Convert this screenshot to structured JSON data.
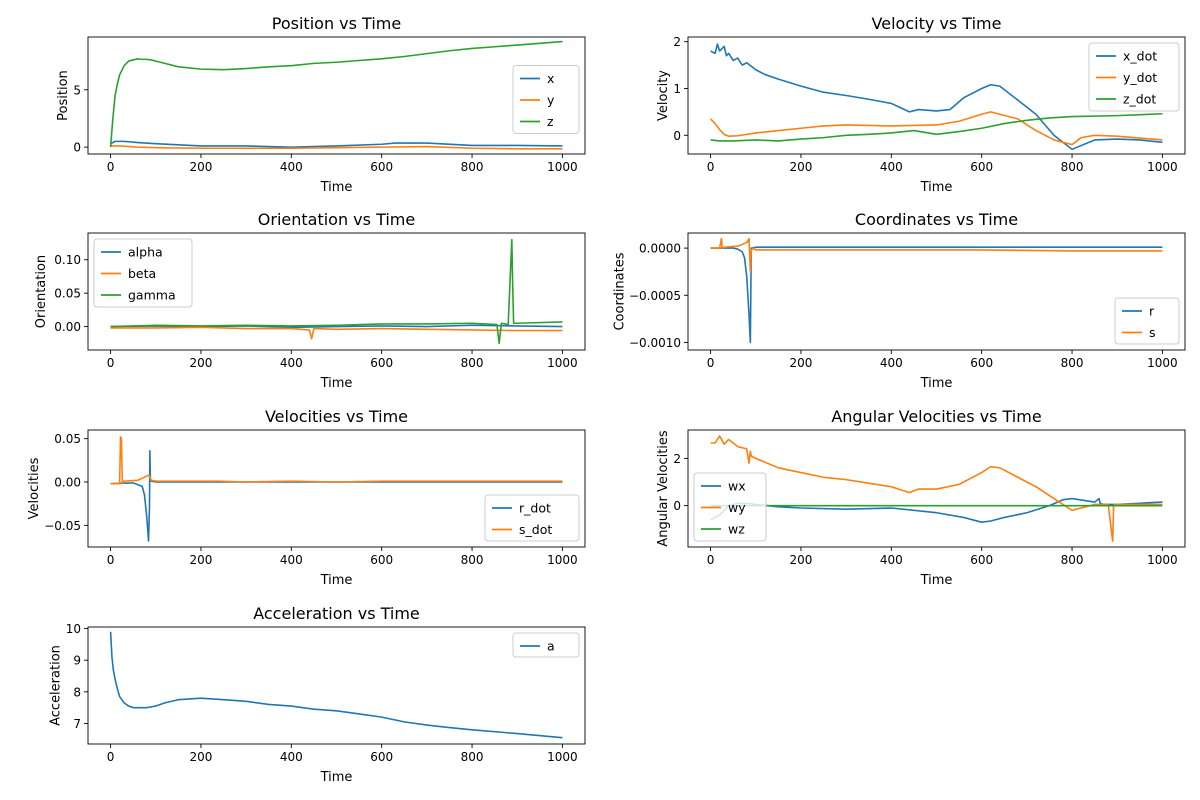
{
  "colors": {
    "c0": "#1f77b4",
    "c1": "#ff7f0e",
    "c2": "#2ca02c"
  },
  "chart_data": [
    {
      "type": "line",
      "title": "Position vs Time",
      "xlabel": "Time",
      "ylabel": "Position",
      "xlim": [
        -50,
        1050
      ],
      "ylim": [
        -0.6,
        9.6
      ],
      "xticks": [
        0,
        200,
        400,
        600,
        800,
        1000
      ],
      "yticks": [
        0,
        5
      ],
      "legend": "center-right",
      "series": [
        {
          "name": "x",
          "color": "c0",
          "x": [
            0,
            10,
            30,
            60,
            100,
            200,
            300,
            400,
            500,
            600,
            630,
            700,
            800,
            900,
            1000
          ],
          "y": [
            0.3,
            0.5,
            0.5,
            0.4,
            0.3,
            0.1,
            0.1,
            0.0,
            0.1,
            0.25,
            0.35,
            0.35,
            0.15,
            0.15,
            0.1
          ]
        },
        {
          "name": "y",
          "color": "c1",
          "x": [
            0,
            20,
            60,
            100,
            200,
            300,
            400,
            500,
            600,
            700,
            800,
            900,
            1000
          ],
          "y": [
            0.1,
            0.1,
            0.0,
            -0.05,
            -0.1,
            -0.1,
            -0.1,
            -0.05,
            0.0,
            0.05,
            -0.1,
            -0.15,
            -0.15
          ]
        },
        {
          "name": "z",
          "color": "c2",
          "x": [
            0,
            5,
            10,
            15,
            20,
            30,
            40,
            50,
            60,
            70,
            80,
            90,
            100,
            120,
            150,
            200,
            250,
            300,
            350,
            400,
            450,
            500,
            550,
            600,
            650,
            700,
            750,
            800,
            850,
            900,
            950,
            1000
          ],
          "y": [
            0,
            2.5,
            4.5,
            5.5,
            6.3,
            7.1,
            7.5,
            7.6,
            7.7,
            7.65,
            7.65,
            7.6,
            7.5,
            7.3,
            7.0,
            6.8,
            6.75,
            6.85,
            7.0,
            7.1,
            7.3,
            7.4,
            7.55,
            7.7,
            7.9,
            8.15,
            8.4,
            8.6,
            8.75,
            8.9,
            9.05,
            9.2
          ]
        }
      ]
    },
    {
      "type": "line",
      "title": "Velocity vs Time",
      "xlabel": "Time",
      "ylabel": "Velocity",
      "xlim": [
        -50,
        1050
      ],
      "ylim": [
        -0.4,
        2.1
      ],
      "xticks": [
        0,
        200,
        400,
        600,
        800,
        1000
      ],
      "yticks": [
        0,
        1,
        2
      ],
      "legend": "upper-right",
      "series": [
        {
          "name": "x_dot",
          "color": "c0",
          "x": [
            0,
            10,
            15,
            20,
            30,
            35,
            40,
            50,
            60,
            70,
            80,
            100,
            120,
            150,
            200,
            250,
            300,
            350,
            400,
            440,
            460,
            500,
            530,
            560,
            600,
            620,
            640,
            680,
            720,
            760,
            800,
            850,
            900,
            950,
            1000
          ],
          "y": [
            1.8,
            1.75,
            1.95,
            1.8,
            1.9,
            1.7,
            1.75,
            1.6,
            1.65,
            1.5,
            1.55,
            1.4,
            1.3,
            1.2,
            1.05,
            0.92,
            0.85,
            0.77,
            0.68,
            0.5,
            0.55,
            0.52,
            0.55,
            0.8,
            1.0,
            1.08,
            1.05,
            0.75,
            0.45,
            0.0,
            -0.3,
            -0.1,
            -0.08,
            -0.1,
            -0.15
          ]
        },
        {
          "name": "y_dot",
          "color": "c1",
          "x": [
            0,
            10,
            20,
            30,
            40,
            60,
            100,
            150,
            200,
            250,
            300,
            400,
            500,
            550,
            600,
            620,
            640,
            680,
            720,
            760,
            800,
            820,
            850,
            900,
            1000
          ],
          "y": [
            0.35,
            0.25,
            0.12,
            0.02,
            -0.02,
            -0.01,
            0.05,
            0.1,
            0.15,
            0.2,
            0.22,
            0.2,
            0.22,
            0.3,
            0.45,
            0.5,
            0.45,
            0.35,
            0.1,
            -0.1,
            -0.2,
            -0.05,
            0.0,
            -0.02,
            -0.1
          ]
        },
        {
          "name": "z_dot",
          "color": "c2",
          "x": [
            0,
            20,
            50,
            100,
            150,
            200,
            250,
            300,
            350,
            400,
            450,
            500,
            550,
            600,
            650,
            700,
            750,
            800,
            900,
            1000
          ],
          "y": [
            -0.1,
            -0.12,
            -0.12,
            -0.1,
            -0.12,
            -0.08,
            -0.05,
            0.0,
            0.02,
            0.05,
            0.1,
            0.02,
            0.08,
            0.15,
            0.25,
            0.32,
            0.37,
            0.4,
            0.42,
            0.46
          ]
        }
      ]
    },
    {
      "type": "line",
      "title": "Orientation vs Time",
      "xlabel": "Time",
      "ylabel": "Orientation",
      "xlim": [
        -50,
        1050
      ],
      "ylim": [
        -0.035,
        0.14
      ],
      "xticks": [
        0,
        200,
        400,
        600,
        800,
        1000
      ],
      "yticks": [
        0.0,
        0.05,
        0.1
      ],
      "legend": "upper-left",
      "series": [
        {
          "name": "alpha",
          "color": "c0",
          "x": [
            0,
            100,
            200,
            300,
            400,
            500,
            600,
            700,
            800,
            900,
            1000
          ],
          "y": [
            0.0,
            0.001,
            0.0,
            0.001,
            -0.001,
            0.0,
            0.001,
            0.0,
            0.002,
            0.001,
            0.0
          ]
        },
        {
          "name": "beta",
          "color": "c1",
          "x": [
            0,
            100,
            200,
            300,
            400,
            440,
            445,
            450,
            500,
            600,
            700,
            800,
            900,
            1000
          ],
          "y": [
            -0.002,
            -0.002,
            -0.001,
            -0.003,
            -0.003,
            -0.005,
            -0.018,
            -0.003,
            -0.004,
            -0.003,
            -0.004,
            -0.005,
            -0.006,
            -0.006
          ]
        },
        {
          "name": "gamma",
          "color": "c2",
          "x": [
            0,
            100,
            200,
            300,
            400,
            500,
            600,
            700,
            800,
            855,
            860,
            865,
            880,
            888,
            890,
            892,
            900,
            1000
          ],
          "y": [
            0.0,
            0.002,
            0.001,
            0.002,
            0.001,
            0.002,
            0.004,
            0.004,
            0.005,
            0.003,
            -0.025,
            0.005,
            0.003,
            0.13,
            0.06,
            0.005,
            0.005,
            0.007
          ]
        }
      ]
    },
    {
      "type": "line",
      "title": "Coordinates vs Time",
      "xlabel": "Time",
      "ylabel": "Coordinates",
      "xlim": [
        -50,
        1050
      ],
      "ylim": [
        -0.00108,
        0.00016
      ],
      "xticks": [
        0,
        200,
        400,
        600,
        800,
        1000
      ],
      "yticks": [
        0.0,
        -0.0005,
        -0.001
      ],
      "legend": "lower-right",
      "series": [
        {
          "name": "r",
          "color": "c0",
          "x": [
            0,
            50,
            60,
            70,
            75,
            80,
            85,
            88,
            90,
            100,
            200,
            400,
            600,
            800,
            1000
          ],
          "y": [
            0.0,
            0.0,
            -1e-05,
            -4e-05,
            -0.0001,
            -0.0003,
            -0.0007,
            -0.001,
            0.0,
            1e-05,
            1e-05,
            1e-05,
            1e-05,
            1e-05,
            1e-05
          ]
        },
        {
          "name": "s",
          "color": "c1",
          "x": [
            0,
            20,
            24,
            26,
            30,
            60,
            80,
            85,
            88,
            90,
            95,
            100,
            200,
            400,
            600,
            800,
            1000
          ],
          "y": [
            0.0,
            0.0,
            0.0001,
            0.0,
            1e-05,
            2e-05,
            6e-05,
            0.0001,
            -0.00025,
            -2e-05,
            0.0,
            -2e-05,
            -2e-05,
            -2e-05,
            -2e-05,
            -3e-05,
            -3e-05
          ]
        }
      ]
    },
    {
      "type": "line",
      "title": "Velocities vs Time",
      "xlabel": "Time",
      "ylabel": "Velocities",
      "xlim": [
        -50,
        1050
      ],
      "ylim": [
        -0.075,
        0.06
      ],
      "xticks": [
        0,
        200,
        400,
        600,
        800,
        1000
      ],
      "yticks": [
        0.05,
        0.0,
        -0.05
      ],
      "legend": "lower-right",
      "series": [
        {
          "name": "r_dot",
          "color": "c0",
          "x": [
            0,
            50,
            70,
            75,
            80,
            84,
            86,
            87,
            88,
            90,
            100,
            300,
            500,
            800,
            1000
          ],
          "y": [
            -0.002,
            -0.001,
            -0.005,
            -0.015,
            -0.04,
            -0.068,
            -0.03,
            0.036,
            0.002,
            0.001,
            0.0,
            0.0,
            0.0,
            0.0,
            0.0
          ]
        },
        {
          "name": "s_dot",
          "color": "c1",
          "x": [
            0,
            20,
            22,
            24,
            26,
            30,
            60,
            85,
            90,
            100,
            240,
            300,
            400,
            500,
            600,
            700,
            800,
            900,
            1000
          ],
          "y": [
            -0.002,
            -0.002,
            0.052,
            0.05,
            -0.002,
            0.001,
            0.002,
            0.008,
            0.002,
            0.001,
            0.001,
            0.0,
            0.001,
            0.0,
            0.001,
            0.001,
            0.001,
            0.001,
            0.001
          ]
        }
      ]
    },
    {
      "type": "line",
      "title": "Angular Velocities vs Time",
      "xlabel": "Time",
      "ylabel": "Angular Velocities",
      "xlim": [
        -50,
        1050
      ],
      "ylim": [
        -1.75,
        3.2
      ],
      "xticks": [
        0,
        200,
        400,
        600,
        800,
        1000
      ],
      "yticks": [
        0,
        2
      ],
      "legend": "lower-left",
      "series": [
        {
          "name": "wx",
          "color": "c0",
          "x": [
            0,
            10,
            20,
            30,
            40,
            60,
            80,
            100,
            150,
            200,
            300,
            400,
            500,
            560,
            600,
            620,
            650,
            700,
            750,
            780,
            800,
            850,
            860,
            862,
            870,
            900,
            1000
          ],
          "y": [
            -0.6,
            -0.5,
            -0.4,
            -0.2,
            0.0,
            0.1,
            0.1,
            0.05,
            -0.05,
            -0.1,
            -0.15,
            -0.1,
            -0.3,
            -0.5,
            -0.7,
            -0.65,
            -0.5,
            -0.3,
            0.0,
            0.25,
            0.3,
            0.15,
            0.3,
            0.1,
            0.05,
            0.05,
            0.15
          ]
        },
        {
          "name": "wy",
          "color": "c1",
          "x": [
            0,
            10,
            20,
            30,
            40,
            60,
            80,
            85,
            88,
            90,
            100,
            150,
            200,
            250,
            300,
            350,
            400,
            440,
            460,
            500,
            550,
            600,
            620,
            640,
            680,
            720,
            760,
            800,
            850,
            880,
            890,
            892,
            895,
            900,
            1000
          ],
          "y": [
            2.65,
            2.65,
            2.95,
            2.6,
            2.8,
            2.5,
            2.4,
            1.8,
            2.3,
            2.1,
            2.0,
            1.6,
            1.4,
            1.2,
            1.1,
            0.95,
            0.8,
            0.55,
            0.7,
            0.7,
            0.9,
            1.4,
            1.65,
            1.6,
            1.2,
            0.8,
            0.3,
            -0.2,
            0.05,
            0.05,
            -1.5,
            0.0,
            0.05,
            0.05,
            0.05
          ]
        },
        {
          "name": "wz",
          "color": "c2",
          "x": [
            0,
            100,
            200,
            400,
            600,
            800,
            1000
          ],
          "y": [
            0.0,
            0.0,
            0.0,
            0.0,
            0.0,
            0.0,
            0.0
          ]
        }
      ]
    },
    {
      "type": "line",
      "title": "Acceleration vs Time",
      "xlabel": "Time",
      "ylabel": "Acceleration",
      "xlim": [
        -50,
        1050
      ],
      "ylim": [
        6.35,
        10.05
      ],
      "xticks": [
        0,
        200,
        400,
        600,
        800,
        1000
      ],
      "yticks": [
        7,
        8,
        9,
        10
      ],
      "legend": "upper-right",
      "series": [
        {
          "name": "a",
          "color": "c0",
          "x": [
            0,
            3,
            6,
            10,
            15,
            20,
            30,
            40,
            50,
            60,
            80,
            100,
            120,
            150,
            200,
            250,
            300,
            350,
            400,
            450,
            500,
            550,
            600,
            650,
            700,
            750,
            800,
            900,
            1000
          ],
          "y": [
            9.9,
            9.1,
            8.7,
            8.4,
            8.1,
            7.85,
            7.65,
            7.55,
            7.5,
            7.5,
            7.5,
            7.55,
            7.65,
            7.75,
            7.8,
            7.75,
            7.7,
            7.6,
            7.55,
            7.45,
            7.4,
            7.3,
            7.2,
            7.05,
            6.95,
            6.87,
            6.8,
            6.68,
            6.55
          ]
        }
      ]
    }
  ]
}
